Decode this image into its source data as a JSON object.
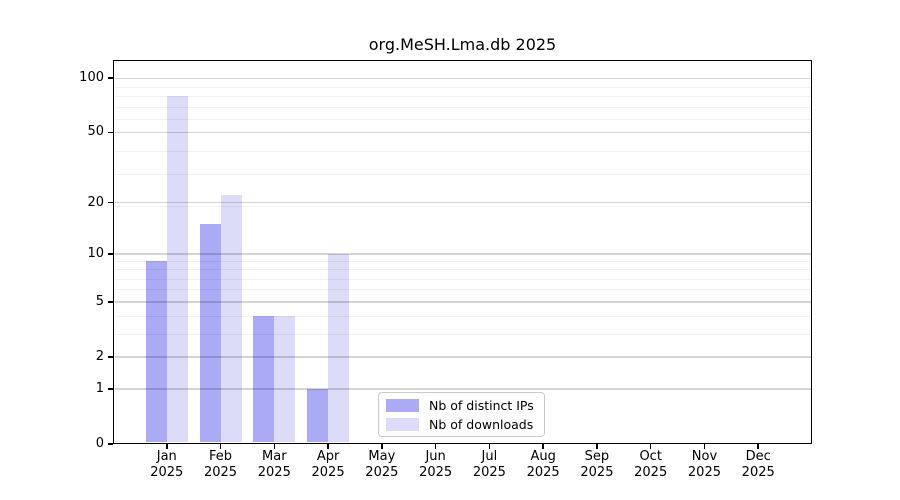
{
  "chart_data": {
    "type": "bar",
    "title": "org.MeSH.Lma.db 2025",
    "categories": [
      "Jan 2025",
      "Feb 2025",
      "Mar 2025",
      "Apr 2025",
      "May 2025",
      "Jun 2025",
      "Jul 2025",
      "Aug 2025",
      "Sep 2025",
      "Oct 2025",
      "Nov 2025",
      "Dec 2025"
    ],
    "series": [
      {
        "name": "Nb of distinct IPs",
        "color": "#aaaaf5",
        "values": [
          9,
          15,
          4,
          1,
          0,
          0,
          0,
          0,
          0,
          0,
          0,
          0
        ]
      },
      {
        "name": "Nb of downloads",
        "color": "#dcdcf8",
        "values": [
          80,
          22,
          4,
          10,
          0,
          0,
          0,
          0,
          0,
          0,
          0,
          0
        ]
      }
    ],
    "xlabel": "",
    "ylabel": "",
    "yscale": "log10(value+1)",
    "ylim": [
      0,
      126
    ],
    "yticks": [
      0,
      1,
      2,
      5,
      10,
      20,
      50,
      100
    ],
    "yticks_minor": [
      3,
      4,
      6,
      7,
      8,
      9,
      19,
      29,
      39,
      59,
      69,
      79,
      89
    ],
    "grid": true,
    "grid_over_bars": true,
    "legend_position": "inside-bottom-center",
    "background_color": "#ffffff",
    "axis_color": "#000000"
  }
}
